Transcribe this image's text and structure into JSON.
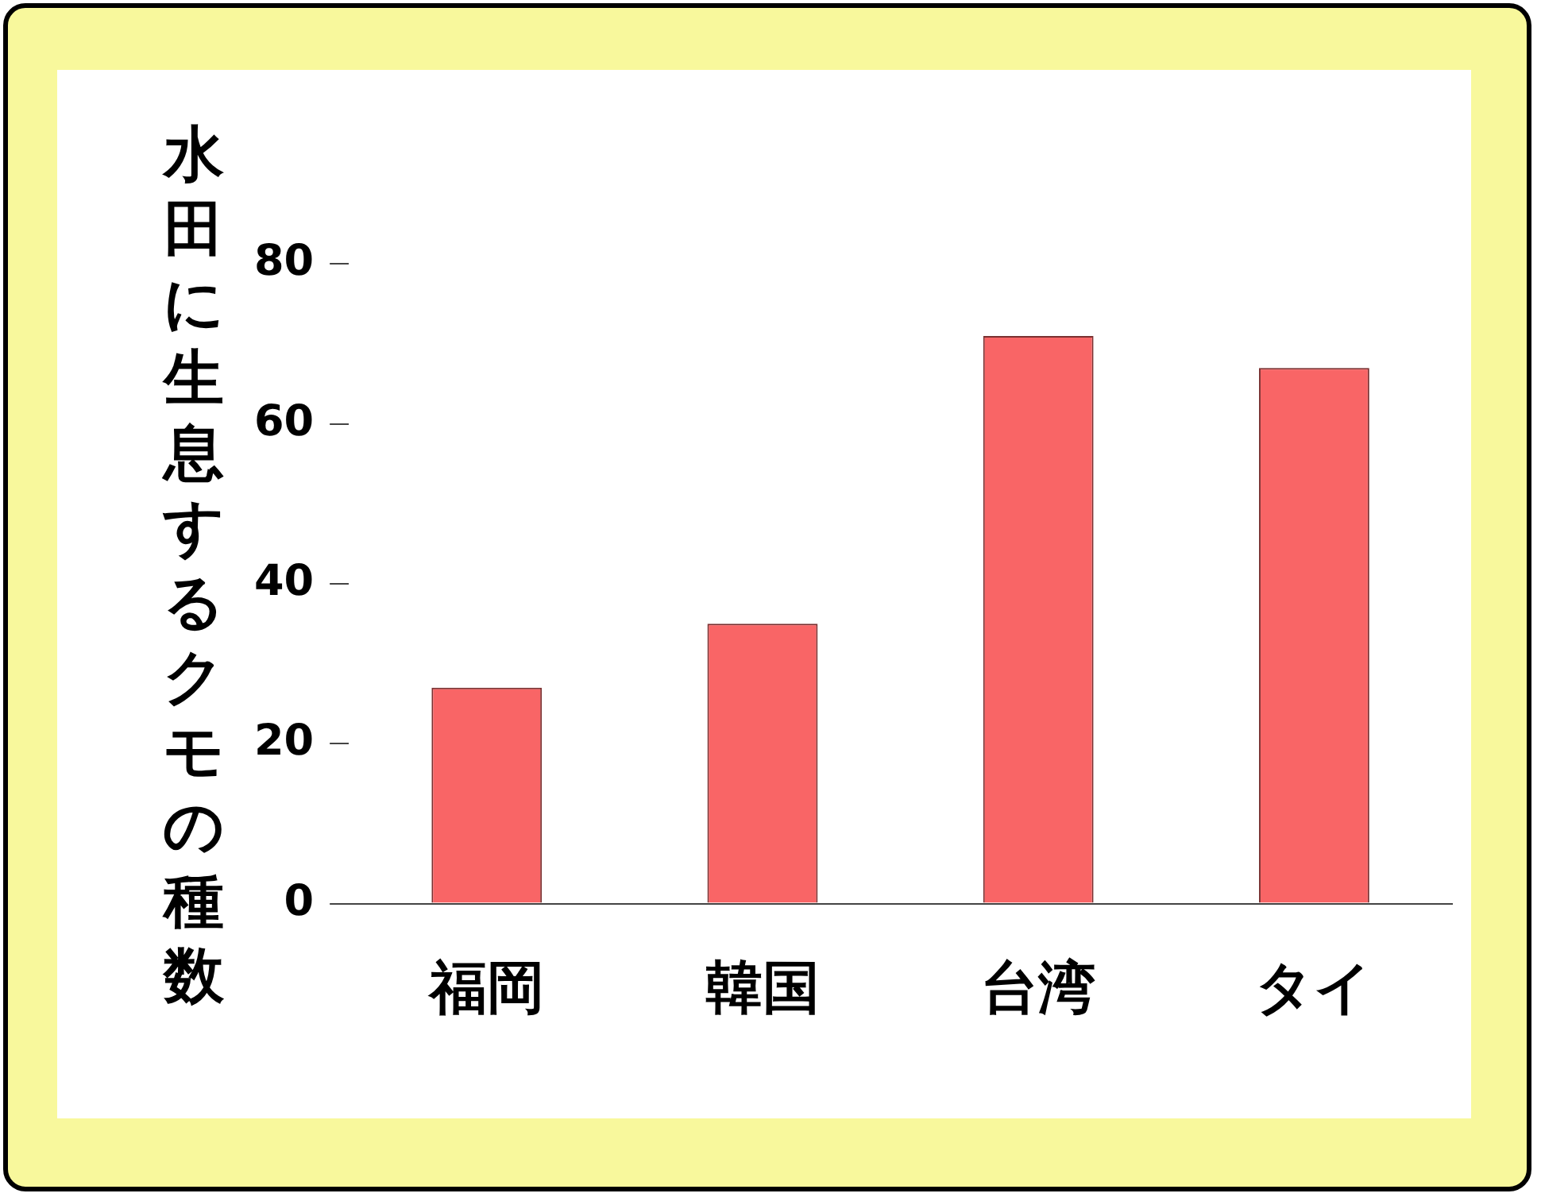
{
  "chart_data": {
    "type": "bar",
    "ylabel": "水田に生息するクモの種数",
    "categories": [
      "福岡",
      "韓国",
      "台湾",
      "タイ"
    ],
    "values": [
      27,
      35,
      71,
      67
    ],
    "color": "#f96566",
    "ylim": [
      0,
      80
    ],
    "yticks": [
      0,
      20,
      40,
      60,
      80
    ],
    "grid": false,
    "legend": false
  }
}
